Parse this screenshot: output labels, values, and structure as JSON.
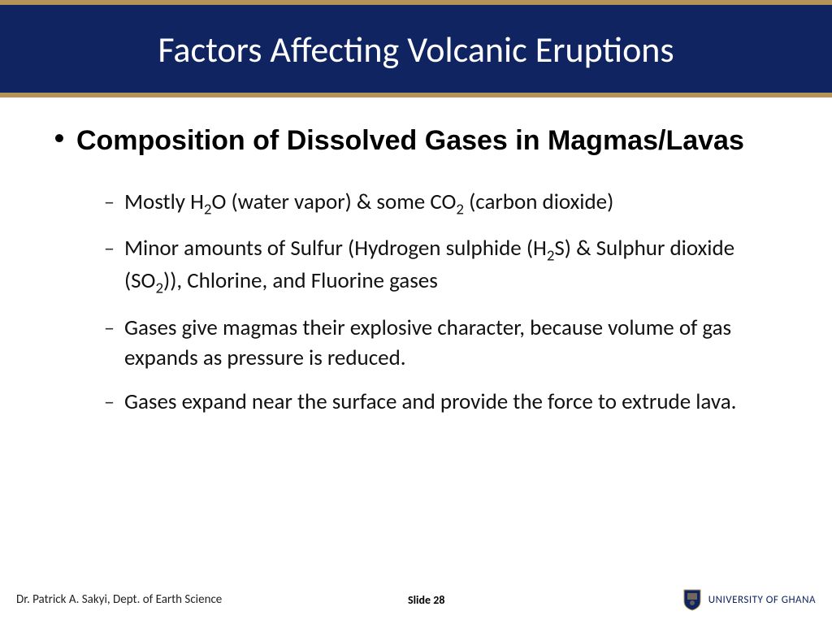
{
  "colors": {
    "header_bg": "#0f2461",
    "gold_bar": "#b29458",
    "title_text": "#ffffff",
    "body_text": "#111111",
    "footer_text": "#222222",
    "uni_text": "#0f2461",
    "page_bg": "#ffffff"
  },
  "typography": {
    "title_fontsize": 44,
    "main_bullet_fontsize": 34,
    "sub_bullet_fontsize": 27,
    "footer_fontsize": 15
  },
  "header": {
    "title": "Factors Affecting Volcanic Eruptions"
  },
  "content": {
    "main_bullet": "Composition of Dissolved Gases in Magmas/Lavas",
    "sub_bullets": [
      {
        "html": "Mostly H<sub>2</sub>O (water vapor) & some CO<sub>2</sub> (carbon dioxide)"
      },
      {
        "html": "Minor amounts of Sulfur (Hydrogen sulphide (H<sub>2</sub>S) & Sulphur dioxide (SO<sub>2</sub>)), Chlorine, and Fluorine gases"
      },
      {
        "html": "Gases give magmas their explosive character, because volume of gas expands as pressure is reduced."
      },
      {
        "html": "Gases expand near the surface and provide the force to extrude lava."
      }
    ]
  },
  "footer": {
    "author": "Dr. Patrick A. Sakyi, Dept. of Earth Science",
    "slide_label": "Slide 28",
    "university": "UNIVERSITY OF GHANA"
  }
}
